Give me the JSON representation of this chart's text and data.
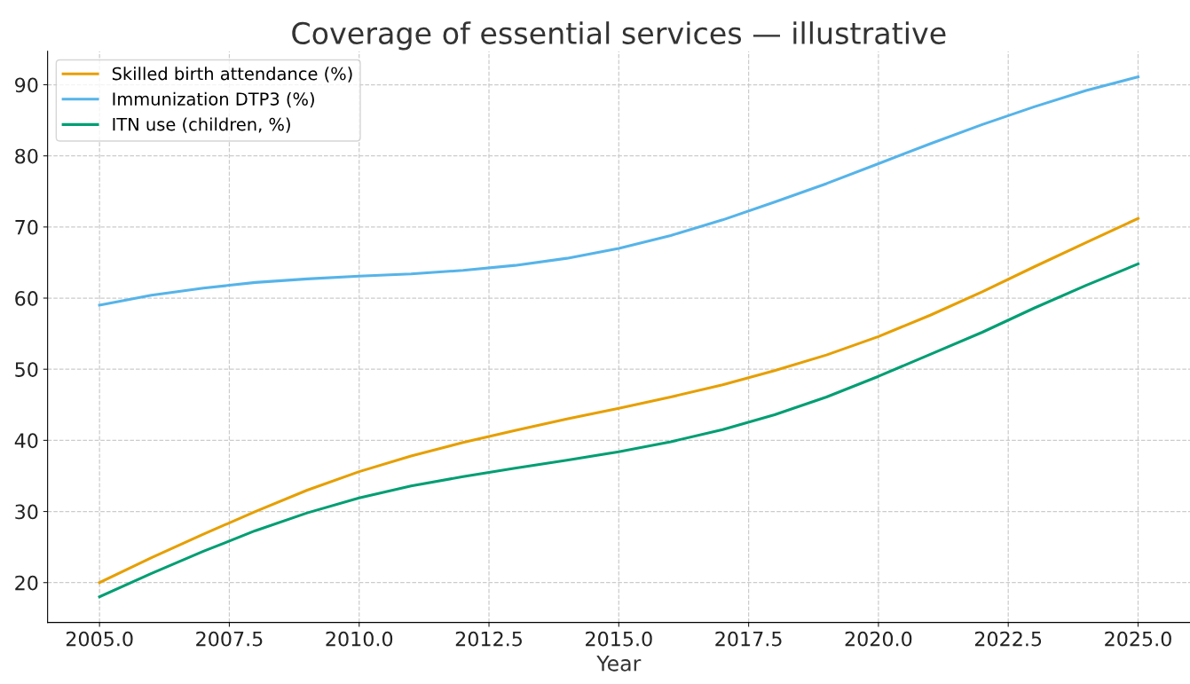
{
  "chart_data": {
    "type": "line",
    "title": "Coverage of essential services — illustrative",
    "xlabel": "Year",
    "x": [
      2005,
      2006,
      2007,
      2008,
      2009,
      2010,
      2011,
      2012,
      2013,
      2014,
      2015,
      2016,
      2017,
      2018,
      2019,
      2020,
      2021,
      2022,
      2023,
      2024,
      2025
    ],
    "series": [
      {
        "name": "Skilled birth attendance (%)",
        "color": "#e69f00",
        "values": [
          20,
          23.5,
          26.8,
          30,
          33,
          35.6,
          37.8,
          39.7,
          41.4,
          43,
          44.5,
          46.1,
          47.8,
          49.8,
          52,
          54.6,
          57.6,
          60.9,
          64.4,
          67.8,
          71.2
        ]
      },
      {
        "name": "Immunization DTP3 (%)",
        "color": "#56b4e9",
        "values": [
          59,
          60.4,
          61.4,
          62.2,
          62.7,
          63.1,
          63.4,
          63.9,
          64.6,
          65.6,
          67,
          68.8,
          71,
          73.5,
          76.1,
          78.9,
          81.7,
          84.4,
          86.9,
          89.2,
          91.1
        ]
      },
      {
        "name": "ITN use (children, %)",
        "color": "#009e73",
        "values": [
          18,
          21.3,
          24.4,
          27.3,
          29.8,
          31.9,
          33.6,
          34.9,
          36.1,
          37.2,
          38.4,
          39.8,
          41.5,
          43.6,
          46.1,
          49,
          52.1,
          55.2,
          58.6,
          61.8,
          64.8
        ]
      }
    ],
    "xlim": [
      2004,
      2026
    ],
    "ylim": [
      14.4,
      94.7
    ],
    "xticks": [
      {
        "value": 2005,
        "label": "2005.0"
      },
      {
        "value": 2007.5,
        "label": "2007.5"
      },
      {
        "value": 2010,
        "label": "2010.0"
      },
      {
        "value": 2012.5,
        "label": "2012.5"
      },
      {
        "value": 2015,
        "label": "2015.0"
      },
      {
        "value": 2017.5,
        "label": "2017.5"
      },
      {
        "value": 2020,
        "label": "2020.0"
      },
      {
        "value": 2022.5,
        "label": "2022.5"
      },
      {
        "value": 2025,
        "label": "2025.0"
      }
    ],
    "yticks": [
      20,
      30,
      40,
      50,
      60,
      70,
      80,
      90
    ],
    "grid": true,
    "legend": "top left",
    "line_style": "solid",
    "marker": "none"
  }
}
